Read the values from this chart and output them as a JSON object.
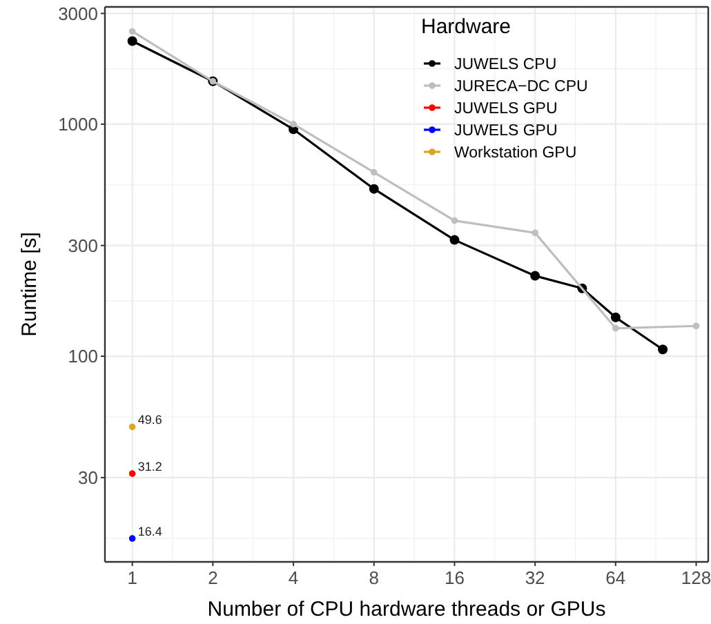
{
  "chart_data": {
    "type": "line",
    "xlabel": "Number of CPU hardware threads or GPUs",
    "ylabel": "Runtime [s]",
    "legend_title": "Hardware",
    "log": "xy",
    "grid": true,
    "legend": "top right",
    "marker": "circle",
    "line_style": "solid",
    "xlim": [
      0.79,
      142
    ],
    "xticks": [
      1,
      2,
      4,
      8,
      16,
      32,
      64,
      128
    ],
    "ylim": [
      13,
      3200
    ],
    "yticks": [
      30,
      100,
      300,
      1000,
      3000
    ],
    "series": [
      {
        "name": "JUWELS CPU",
        "color": "#000000",
        "x": [
          1,
          2,
          4,
          8,
          16,
          32,
          48,
          64,
          96
        ],
        "values": [
          2280,
          1530,
          950,
          526,
          317,
          222,
          196,
          147,
          107
        ]
      },
      {
        "name": "JURECA−DC CPU",
        "color": "#bebebe",
        "x": [
          1,
          2,
          4,
          8,
          16,
          32,
          64,
          128
        ],
        "values": [
          2510,
          1530,
          1000,
          620,
          384,
          340,
          132,
          135
        ]
      },
      {
        "name": "JUWELS GPU",
        "color": "#ff0000",
        "x": [
          1
        ],
        "values": [
          31.2
        ],
        "value_labels": [
          "31.2"
        ]
      },
      {
        "name": "JUWELS GPU",
        "color": "#0000ff",
        "x": [
          1
        ],
        "values": [
          16.4
        ],
        "value_labels": [
          "16.4"
        ]
      },
      {
        "name": "Workstation GPU",
        "color": "#daa520",
        "x": [
          1
        ],
        "values": [
          49.6
        ],
        "value_labels": [
          "49.6"
        ]
      }
    ]
  }
}
